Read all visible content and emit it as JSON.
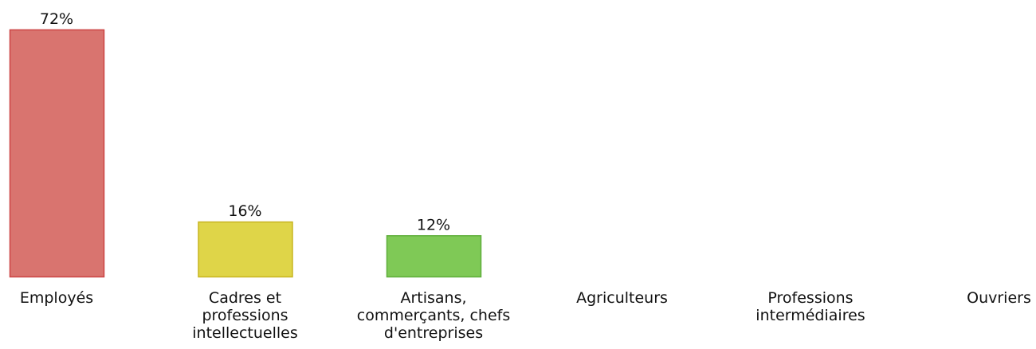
{
  "chart_data": {
    "type": "bar",
    "categories": [
      "Employés",
      "Cadres et professions intellectuelles",
      "Artisans, commerçants, chefs d'entreprises",
      "Agriculteurs",
      "Professions intermédiaires",
      "Ouvriers"
    ],
    "category_lines": [
      [
        "Employés"
      ],
      [
        "Cadres et",
        "professions",
        "intellectuelles"
      ],
      [
        "Artisans,",
        "commerçants, chefs",
        "d'entreprises"
      ],
      [
        "Agriculteurs"
      ],
      [
        "Professions",
        "intermédiaires"
      ],
      [
        "Ouvriers"
      ]
    ],
    "values": [
      72,
      16,
      12,
      0,
      0,
      0
    ],
    "value_labels": [
      "72%",
      "16%",
      "12%",
      "",
      "",
      ""
    ],
    "colors": [
      {
        "fill": "#d9746f",
        "stroke": "#cc4444"
      },
      {
        "fill": "#dfd548",
        "stroke": "#c8b521"
      },
      {
        "fill": "#7fc956",
        "stroke": "#5fae3a"
      },
      {
        "fill": "#cccccc",
        "stroke": "#aaaaaa"
      },
      {
        "fill": "#cccccc",
        "stroke": "#aaaaaa"
      },
      {
        "fill": "#cccccc",
        "stroke": "#aaaaaa"
      }
    ],
    "ylim": [
      0,
      72
    ],
    "grid": false,
    "title": "",
    "xlabel": "",
    "ylabel": ""
  }
}
